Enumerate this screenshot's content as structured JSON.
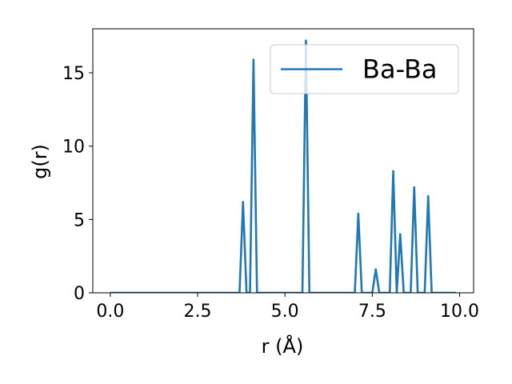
{
  "chart_data": {
    "type": "line",
    "title": "",
    "xlabel": "r (Å)",
    "ylabel": "g(r)",
    "xlim": [
      -0.5,
      10.4
    ],
    "ylim": [
      0,
      18
    ],
    "xticks": [
      0.0,
      2.5,
      5.0,
      7.5,
      10.0
    ],
    "xtick_labels": [
      "0.0",
      "2.5",
      "5.0",
      "7.5",
      "10.0"
    ],
    "yticks": [
      0,
      5,
      10,
      15
    ],
    "ytick_labels": [
      "0",
      "5",
      "10",
      "15"
    ],
    "grid": false,
    "legend": "top-right",
    "series": [
      {
        "name": "Ba-Ba",
        "color": "#1f77b4",
        "x": [
          0.0,
          3.7,
          3.8,
          3.9,
          4.0,
          4.1,
          4.2,
          5.5,
          5.6,
          5.7,
          7.0,
          7.1,
          7.2,
          7.5,
          7.6,
          7.7,
          8.0,
          8.1,
          8.2,
          8.3,
          8.4,
          8.6,
          8.7,
          8.8,
          9.0,
          9.1,
          9.2,
          9.9
        ],
        "y": [
          0.0,
          0.0,
          6.2,
          0.0,
          0.0,
          15.9,
          0.0,
          0.0,
          17.2,
          0.0,
          0.0,
          5.4,
          0.0,
          0.0,
          1.6,
          0.0,
          0.0,
          8.3,
          0.0,
          4.0,
          0.0,
          0.0,
          7.2,
          0.0,
          0.0,
          6.6,
          0.0,
          0.0
        ]
      }
    ]
  }
}
